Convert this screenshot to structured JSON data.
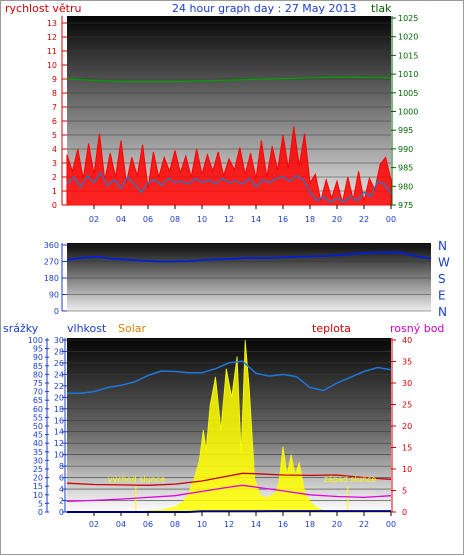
{
  "colors": {
    "red_axis": "#d40000",
    "blue_axis": "#1a3fcc",
    "green_axis": "#006400",
    "orange": "#e08000",
    "magenta": "#cc00cc",
    "wind": "#ff0000",
    "gust": "#1e78c8",
    "pressure": "#00a000",
    "direction": "#0020d8",
    "humidity": "#1e78dc",
    "solar": "#ffff00",
    "temperature": "#c80000",
    "dewpoint": "#e000e0",
    "rain": "#000080"
  },
  "chart_data": [
    {
      "type": "line",
      "id": "wind_pressure",
      "title": "24 hour graph day : 27 May 2013",
      "left_axis_label": "rychlost větru",
      "right_axis_label": "tlak",
      "left_ticks": [
        "0",
        "1",
        "2",
        "3",
        "4",
        "5",
        "6",
        "7",
        "8",
        "9",
        "10",
        "11",
        "12",
        "13"
      ],
      "left_range": [
        0,
        13.5
      ],
      "right_ticks": [
        "975",
        "980",
        "985",
        "990",
        "995",
        "1000",
        "1005",
        "1010",
        "1015",
        "1020",
        "1025"
      ],
      "right_range": [
        975,
        1025
      ],
      "x_ticks": [
        "02",
        "04",
        "06",
        "08",
        "10",
        "12",
        "14",
        "16",
        "18",
        "20",
        "22",
        "00"
      ],
      "x_range": [
        0,
        24
      ],
      "series": [
        {
          "key": "wind",
          "x": [
            0,
            0.4,
            0.8,
            1.2,
            1.6,
            2,
            2.4,
            2.8,
            3.2,
            3.6,
            4,
            4.4,
            4.8,
            5.2,
            5.6,
            6,
            6.4,
            6.8,
            7.2,
            7.6,
            8,
            8.4,
            8.8,
            9.2,
            9.6,
            10,
            10.4,
            10.8,
            11.2,
            11.6,
            12,
            12.4,
            12.8,
            13.2,
            13.6,
            14,
            14.4,
            14.8,
            15.2,
            15.6,
            16,
            16.4,
            16.8,
            17.2,
            17.6,
            18,
            18.4,
            18.8,
            19.2,
            19.6,
            20,
            20.4,
            20.8,
            21.2,
            21.6,
            22,
            22.4,
            22.8,
            23.2,
            23.6,
            24
          ],
          "values": [
            3.6,
            2.4,
            4.0,
            1.9,
            4.4,
            2.2,
            5.1,
            1.8,
            3.7,
            2.0,
            4.6,
            1.6,
            3.4,
            2.1,
            4.3,
            1.2,
            3.8,
            2.0,
            3.4,
            2.4,
            3.9,
            2.3,
            3.5,
            2.0,
            4.0,
            2.2,
            3.6,
            2.4,
            3.8,
            2.1,
            3.3,
            2.5,
            4.1,
            2.2,
            3.7,
            1.9,
            4.6,
            2.0,
            4.2,
            2.5,
            5.0,
            2.6,
            5.6,
            2.8,
            5.1,
            1.6,
            2.2,
            0.3,
            1.8,
            0.5,
            1.7,
            0.2,
            2.0,
            0.4,
            2.4,
            0.3,
            1.9,
            1.1,
            2.9,
            3.4,
            1.8
          ]
        },
        {
          "key": "gust",
          "x": [
            0,
            0.5,
            1,
            1.5,
            2,
            2.5,
            3,
            3.5,
            4,
            4.5,
            5,
            5.5,
            6,
            6.5,
            7,
            7.5,
            8,
            8.5,
            9,
            9.5,
            10,
            10.5,
            11,
            11.5,
            12,
            12.5,
            13,
            13.5,
            14,
            14.5,
            15,
            15.5,
            16,
            16.5,
            17,
            17.5,
            18,
            18.5,
            19,
            19.5,
            20,
            20.5,
            21,
            21.5,
            22,
            22.5,
            23,
            23.5,
            24
          ],
          "values": [
            1.5,
            2.0,
            1.3,
            2.1,
            1.6,
            2.3,
            1.4,
            1.8,
            1.2,
            2.0,
            1.5,
            0.9,
            1.6,
            1.8,
            1.4,
            1.9,
            1.6,
            1.7,
            1.5,
            1.9,
            1.6,
            1.8,
            1.5,
            1.9,
            1.6,
            1.7,
            1.5,
            1.9,
            1.3,
            1.8,
            1.6,
            1.9,
            2.0,
            1.7,
            2.1,
            1.8,
            0.9,
            0.3,
            0.6,
            0.2,
            0.5,
            0.2,
            0.6,
            0.3,
            0.9,
            0.6,
            1.7,
            1.5,
            0.8
          ]
        },
        {
          "key": "pressure",
          "x": [
            0,
            4,
            8,
            12,
            16,
            20,
            24
          ],
          "values": [
            1008.7,
            1008.0,
            1008.0,
            1008.4,
            1008.8,
            1009.2,
            1009.0
          ]
        }
      ]
    },
    {
      "type": "line",
      "id": "wind_direction",
      "left_ticks": [
        "0",
        "90",
        "180",
        "270",
        "360"
      ],
      "left_range": [
        0,
        360
      ],
      "right_labels": [
        "N",
        "W",
        "S",
        "E",
        "N"
      ],
      "series": [
        {
          "key": "direction",
          "x": [
            0,
            1,
            2,
            3,
            4,
            5,
            6,
            7,
            8,
            9,
            10,
            11,
            12,
            13,
            14,
            15,
            16,
            17,
            18,
            19,
            20,
            21,
            22,
            23,
            24
          ],
          "values": [
            280,
            290,
            295,
            285,
            280,
            275,
            270,
            270,
            272,
            278,
            282,
            285,
            290,
            288,
            292,
            295,
            298,
            300,
            305,
            312,
            318,
            320,
            318,
            300,
            285
          ]
        }
      ]
    },
    {
      "type": "line",
      "id": "humidity_temp_solar",
      "axis_labels": {
        "rain": "srážky",
        "humidity": "vlhkost",
        "solar": "Solar",
        "temperature": "teplota",
        "dewpoint": "rosný bod"
      },
      "rain_ticks": [
        "0",
        "5",
        "10",
        "15",
        "20",
        "25",
        "30",
        "35",
        "40",
        "45",
        "50",
        "55",
        "60",
        "65",
        "70",
        "75",
        "80",
        "85",
        "90",
        "95",
        "100"
      ],
      "humidity_ticks": [
        "0",
        "2",
        "4",
        "6",
        "8",
        "10",
        "12",
        "14",
        "16",
        "18",
        "20",
        "22",
        "24",
        "26",
        "28",
        "30"
      ],
      "humidity_range": [
        0,
        30
      ],
      "temp_ticks": [
        "0",
        "5",
        "10",
        "15",
        "20",
        "25",
        "30",
        "35",
        "40"
      ],
      "temp_range": [
        0,
        40
      ],
      "annotations": {
        "sunrise": "východ slunce",
        "sunset": "západ slunce"
      },
      "sunrise_hour": 5.1,
      "sunset_hour": 20.8,
      "series": [
        {
          "key": "humidity",
          "x": [
            0,
            1,
            2,
            3,
            4,
            5,
            6,
            7,
            8,
            9,
            10,
            11,
            12,
            13,
            14,
            15,
            16,
            17,
            18,
            19,
            20,
            21,
            22,
            23,
            24
          ],
          "values": [
            20.7,
            20.7,
            21.0,
            21.7,
            22.1,
            22.7,
            23.8,
            24.6,
            24.5,
            24.3,
            24.3,
            25.0,
            26.0,
            26.3,
            24.2,
            23.7,
            24.0,
            23.6,
            21.7,
            21.2,
            22.5,
            23.5,
            24.5,
            25.2,
            24.8
          ]
        },
        {
          "key": "temperature",
          "x": [
            0,
            2,
            4,
            6,
            8,
            10,
            12,
            13,
            14,
            16,
            18,
            20,
            22,
            24
          ],
          "values": [
            6.7,
            6.4,
            6.3,
            6.2,
            6.5,
            7.2,
            8.4,
            9.0,
            8.9,
            8.6,
            8.5,
            8.6,
            8.0,
            7.6
          ]
        },
        {
          "key": "dewpoint",
          "x": [
            0,
            2,
            4,
            6,
            8,
            10,
            12,
            13,
            14,
            16,
            18,
            20,
            22,
            24
          ],
          "values": [
            2.5,
            2.7,
            3.0,
            3.4,
            3.8,
            4.8,
            5.8,
            6.2,
            5.8,
            4.9,
            4.0,
            3.6,
            3.4,
            3.8
          ]
        },
        {
          "key": "solar",
          "x": [
            0,
            5,
            6,
            7,
            8,
            8.6,
            9,
            9.4,
            9.8,
            10.1,
            10.3,
            10.6,
            11,
            11.4,
            11.8,
            12.2,
            12.6,
            12.9,
            13.2,
            13.5,
            13.9,
            14.3,
            14.8,
            15.4,
            15.7,
            16,
            16.3,
            16.6,
            16.9,
            17.2,
            17.6,
            18,
            18.5,
            19,
            20,
            21,
            24
          ],
          "values": [
            0,
            0,
            0.3,
            0.5,
            1.2,
            2.5,
            4.5,
            8,
            12.5,
            20,
            15,
            26,
            33,
            20,
            35,
            28,
            38,
            14,
            42,
            30,
            8,
            4,
            3.5,
            4.5,
            7,
            16,
            9,
            14,
            9,
            12,
            5,
            2.5,
            1,
            0.4,
            0.2,
            0,
            0
          ]
        },
        {
          "key": "rain",
          "x": [
            0,
            9,
            10,
            14,
            15,
            24
          ],
          "values": [
            0,
            0,
            0.4,
            0.4,
            0.5,
            0.5
          ]
        }
      ]
    }
  ]
}
